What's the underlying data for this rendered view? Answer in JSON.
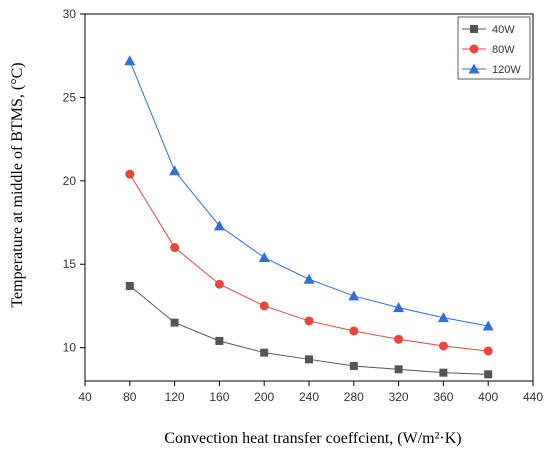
{
  "chart_data": {
    "type": "line",
    "xlabel": "Convection heat transfer coeffcient, (W/m²·K)",
    "ylabel": "Temperature at middle of BTMS, (°C)",
    "xlim": [
      40,
      440
    ],
    "ylim": [
      8,
      30
    ],
    "xticks": [
      40,
      80,
      120,
      160,
      200,
      240,
      280,
      320,
      360,
      400,
      440
    ],
    "yticks": [
      10,
      15,
      20,
      25,
      30
    ],
    "grid": false,
    "legend_position": "top-right",
    "x": [
      80,
      120,
      160,
      200,
      240,
      280,
      320,
      360,
      400
    ],
    "series": [
      {
        "name": "40W",
        "marker": "square",
        "color": "#555555",
        "values": [
          13.7,
          11.5,
          10.4,
          9.7,
          9.3,
          8.9,
          8.7,
          8.5,
          8.4
        ]
      },
      {
        "name": "80W",
        "marker": "circle",
        "color": "#e8463a",
        "values": [
          20.4,
          16.0,
          13.8,
          12.5,
          11.6,
          11.0,
          10.5,
          10.1,
          9.8
        ]
      },
      {
        "name": "120W",
        "marker": "triangle",
        "color": "#2f6fd6",
        "values": [
          27.2,
          20.6,
          17.3,
          15.4,
          14.1,
          13.1,
          12.4,
          11.8,
          11.3
        ]
      }
    ]
  }
}
